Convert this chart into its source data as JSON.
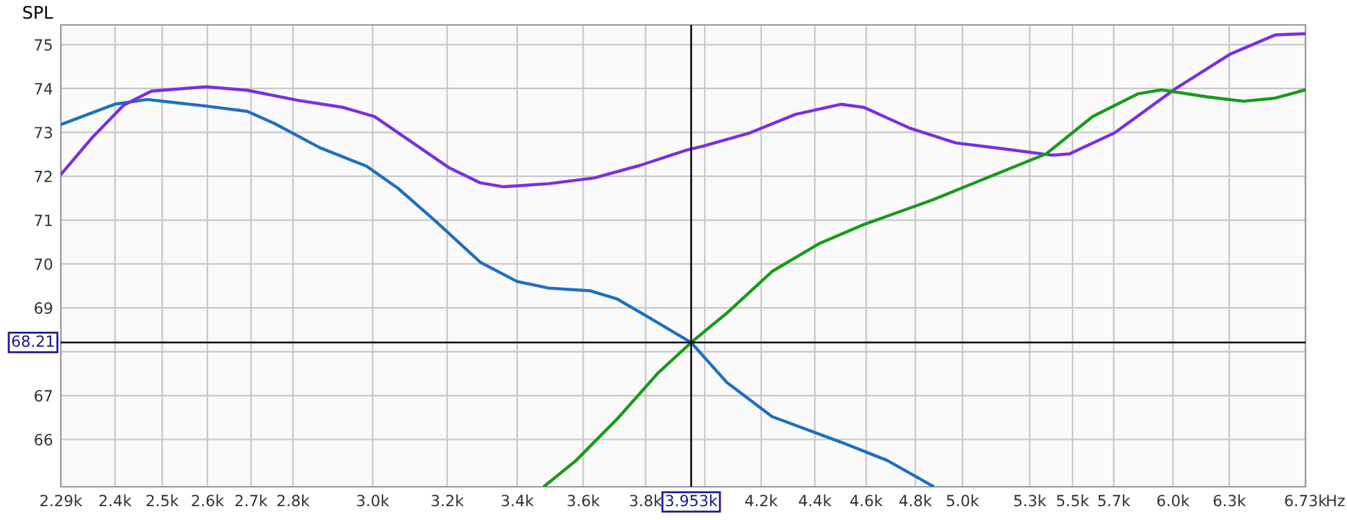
{
  "chart_data": {
    "type": "line",
    "ylabel": "SPL",
    "log": "x",
    "grid": true,
    "legend": false,
    "marker": "none",
    "line_style": "solid",
    "xlim": [
      2290,
      6730
    ],
    "ylim": [
      64.92,
      75.45
    ],
    "xticks": [
      {
        "value": 2290,
        "label": "2.29k"
      },
      {
        "value": 2400,
        "label": "2.4k"
      },
      {
        "value": 2500,
        "label": "2.5k"
      },
      {
        "value": 2600,
        "label": "2.6k"
      },
      {
        "value": 2700,
        "label": "2.7k"
      },
      {
        "value": 2800,
        "label": "2.8k"
      },
      {
        "value": 3000,
        "label": "3.0k"
      },
      {
        "value": 3200,
        "label": "3.2k"
      },
      {
        "value": 3400,
        "label": "3.4k"
      },
      {
        "value": 3600,
        "label": "3.6k"
      },
      {
        "value": 3800,
        "label": "3.8k"
      },
      {
        "value": 4000,
        "label": null
      },
      {
        "value": 4200,
        "label": "4.2k"
      },
      {
        "value": 4400,
        "label": "4.4k"
      },
      {
        "value": 4600,
        "label": "4.6k"
      },
      {
        "value": 4800,
        "label": "4.8k"
      },
      {
        "value": 5000,
        "label": "5.0k"
      },
      {
        "value": 5300,
        "label": "5.3k"
      },
      {
        "value": 5500,
        "label": "5.5k"
      },
      {
        "value": 5700,
        "label": "5.7k"
      },
      {
        "value": 6000,
        "label": "6.0k"
      },
      {
        "value": 6300,
        "label": "6.3k"
      },
      {
        "value": 6730,
        "label": "6.73k"
      }
    ],
    "xlabel": "Hz",
    "yticks": [
      66,
      67,
      {
        "value": 68,
        "label": null
      },
      69,
      70,
      71,
      72,
      73,
      74,
      75
    ],
    "ref_lines": [
      {
        "axis": "y",
        "value": 68.21,
        "label": "68.21",
        "color": "#000000"
      },
      {
        "axis": "x",
        "value": 3953,
        "label": "3.953k",
        "color": "#000000"
      }
    ],
    "series": [
      {
        "color": "#1f6fc0",
        "x": [
          2290,
          2399,
          2468,
          2597,
          2691,
          2756,
          2866,
          2984,
          3066,
          3166,
          3293,
          3400,
          3494,
          3621,
          3708,
          3811,
          3953,
          4077,
          4240,
          4500,
          4685,
          4872
        ],
        "values": [
          73.18,
          73.64,
          73.75,
          73.6,
          73.48,
          73.2,
          72.65,
          72.23,
          71.73,
          70.99,
          70.04,
          69.6,
          69.45,
          69.39,
          69.2,
          68.78,
          68.21,
          67.3,
          66.52,
          65.94,
          65.52,
          64.94
        ]
      },
      {
        "color": "#7b2fe0",
        "x": [
          2290,
          2353,
          2418,
          2477,
          2597,
          2691,
          2812,
          2924,
          3005,
          3103,
          3204,
          3293,
          3360,
          3494,
          3634,
          3783,
          3935,
          3996,
          4160,
          4327,
          4500,
          4591,
          4775,
          4971,
          5188,
          5402,
          5486,
          5705,
          6011,
          6303,
          6555,
          6730
        ],
        "values": [
          72.04,
          72.88,
          73.62,
          73.94,
          74.04,
          73.96,
          73.73,
          73.57,
          73.36,
          72.78,
          72.2,
          71.85,
          71.76,
          71.83,
          71.96,
          72.25,
          72.59,
          72.69,
          72.99,
          73.41,
          73.64,
          73.57,
          73.1,
          72.76,
          72.62,
          72.48,
          72.51,
          72.99,
          73.99,
          74.78,
          75.22,
          75.25
        ]
      },
      {
        "color": "#1a9a1a",
        "x": [
          3482,
          3578,
          3708,
          3842,
          3953,
          4077,
          4240,
          4415,
          4591,
          4872,
          5067,
          5376,
          5597,
          5822,
          5940,
          6178,
          6378,
          6555,
          6730
        ],
        "values": [
          64.94,
          65.52,
          66.47,
          67.52,
          68.21,
          68.88,
          69.83,
          70.46,
          70.9,
          71.46,
          71.88,
          72.51,
          73.36,
          73.88,
          73.97,
          73.81,
          73.71,
          73.78,
          73.97
        ]
      }
    ]
  }
}
